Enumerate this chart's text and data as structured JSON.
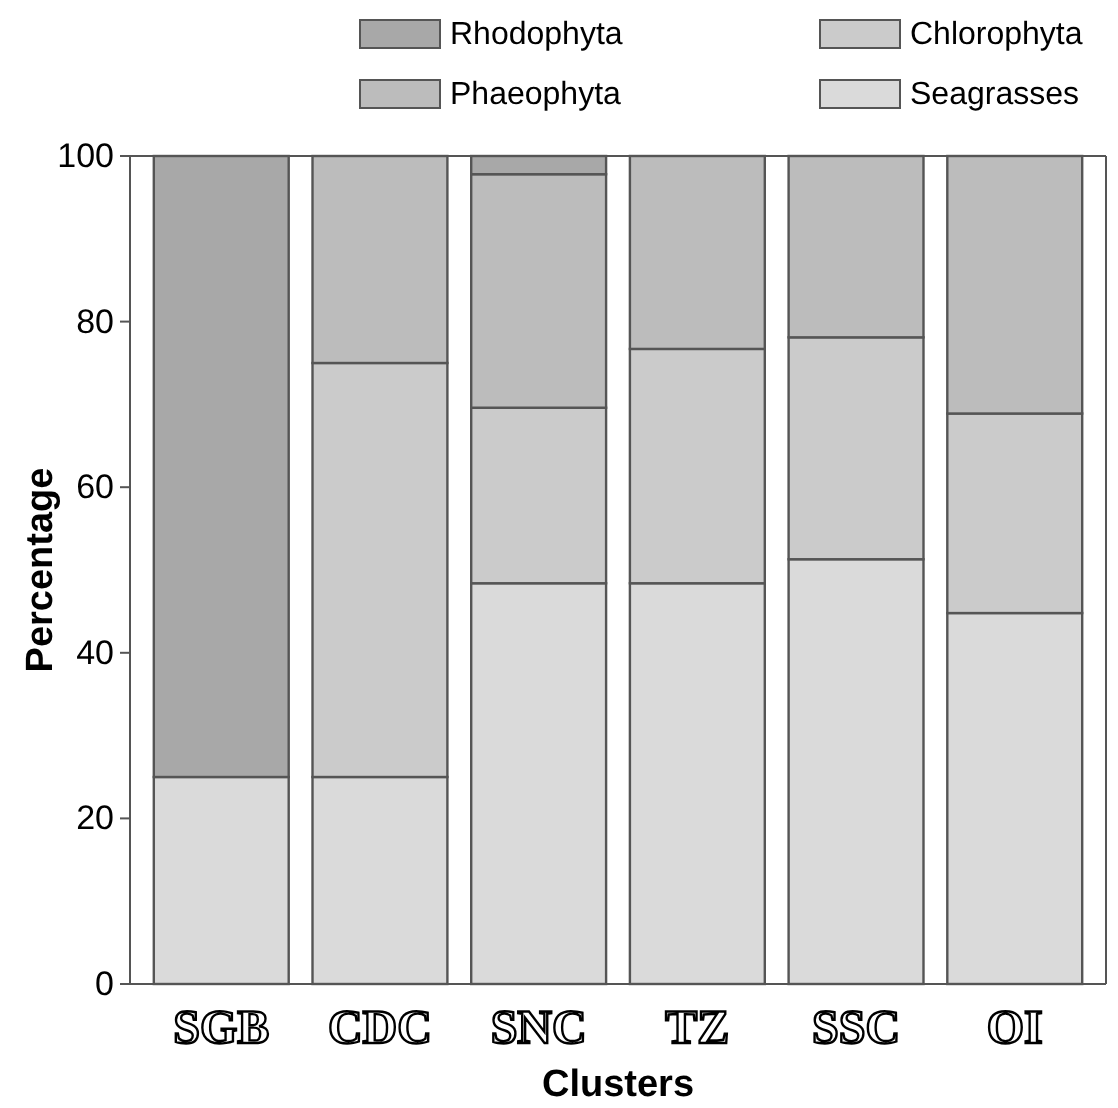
{
  "chart_data": {
    "type": "bar",
    "stacked": true,
    "xlabel": "Clusters",
    "ylabel": "Percentage",
    "categories": [
      "SGB",
      "CDC",
      "SNC",
      "TZ",
      "SSC",
      "OI"
    ],
    "series": [
      {
        "name": "Seagrasses",
        "color": "#dadada",
        "values": [
          25,
          25,
          48.4,
          48.4,
          51.3,
          44.8
        ]
      },
      {
        "name": "Chlorophyta",
        "color": "#cbcbcb",
        "values": [
          null,
          50,
          21.2,
          28.3,
          26.8,
          24.1
        ]
      },
      {
        "name": "Phaeophyta",
        "color": "#bcbcbc",
        "values": [
          null,
          25,
          28.2,
          23.3,
          21.9,
          31.1
        ]
      },
      {
        "name": "Rhodophyta",
        "color": "#a8a8a8",
        "values": [
          75,
          null,
          2.2,
          null,
          null,
          null
        ]
      }
    ],
    "ylim": [
      0,
      100
    ],
    "yticks": [
      0,
      20,
      40,
      60,
      80,
      100
    ],
    "grid": false,
    "legend": "top"
  }
}
